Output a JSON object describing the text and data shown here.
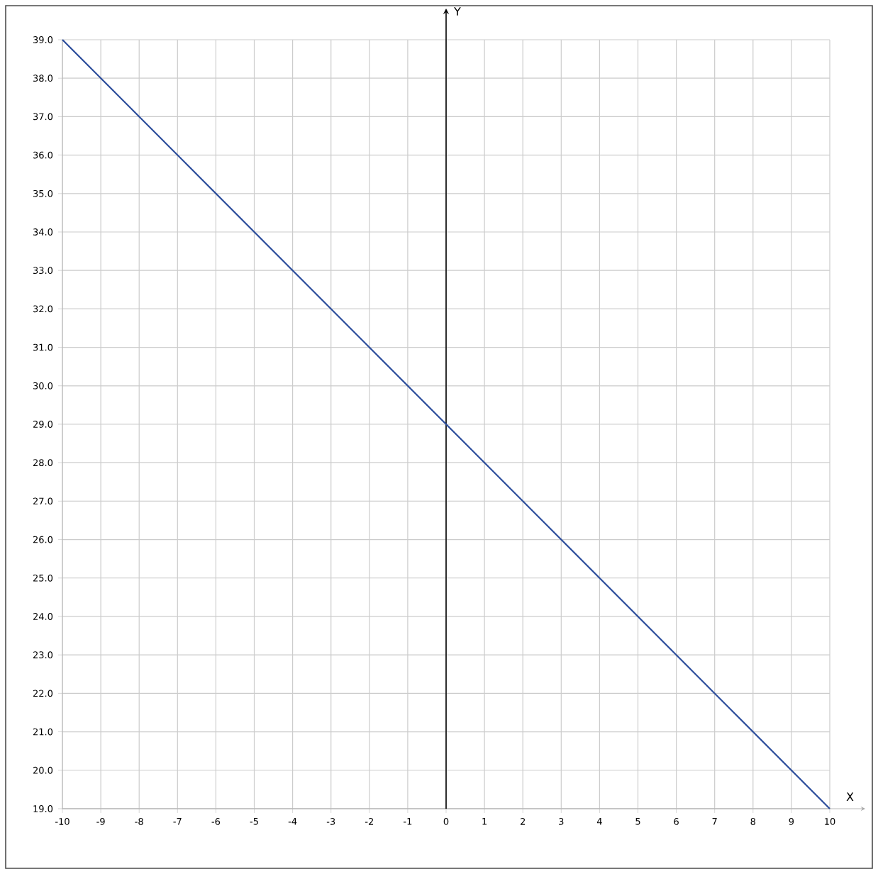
{
  "chart_data": {
    "type": "line",
    "xlabel": "X",
    "ylabel": "Y",
    "x": [
      -10,
      10
    ],
    "series": [
      {
        "color": "#2b4c9b",
        "values": [
          39,
          19
        ]
      }
    ],
    "xlim": [
      -10,
      10
    ],
    "ylim": [
      19,
      39
    ],
    "xticks": [
      -10,
      -9,
      -8,
      -7,
      -6,
      -5,
      -4,
      -3,
      -2,
      -1,
      0,
      1,
      2,
      3,
      4,
      5,
      6,
      7,
      8,
      9,
      10
    ],
    "yticks": [
      {
        "value": 19,
        "label": "19.0"
      },
      {
        "value": 20,
        "label": "20.0"
      },
      {
        "value": 21,
        "label": "21.0"
      },
      {
        "value": 22,
        "label": "22.0"
      },
      {
        "value": 23,
        "label": "23.0"
      },
      {
        "value": 24,
        "label": "24.0"
      },
      {
        "value": 25,
        "label": "25.0"
      },
      {
        "value": 26,
        "label": "26.0"
      },
      {
        "value": 27,
        "label": "27.0"
      },
      {
        "value": 28,
        "label": "28.0"
      },
      {
        "value": 29,
        "label": "29.0"
      },
      {
        "value": 30,
        "label": "30.0"
      },
      {
        "value": 31,
        "label": "31.0"
      },
      {
        "value": 32,
        "label": "32.0"
      },
      {
        "value": 33,
        "label": "33.0"
      },
      {
        "value": 34,
        "label": "34.0"
      },
      {
        "value": 35,
        "label": "35.0"
      },
      {
        "value": 36,
        "label": "36.0"
      },
      {
        "value": 37,
        "label": "37.0"
      },
      {
        "value": 38,
        "label": "38.0"
      },
      {
        "value": 39,
        "label": "39.0"
      }
    ],
    "grid": true,
    "marker": "none",
    "line_style": "solid"
  }
}
